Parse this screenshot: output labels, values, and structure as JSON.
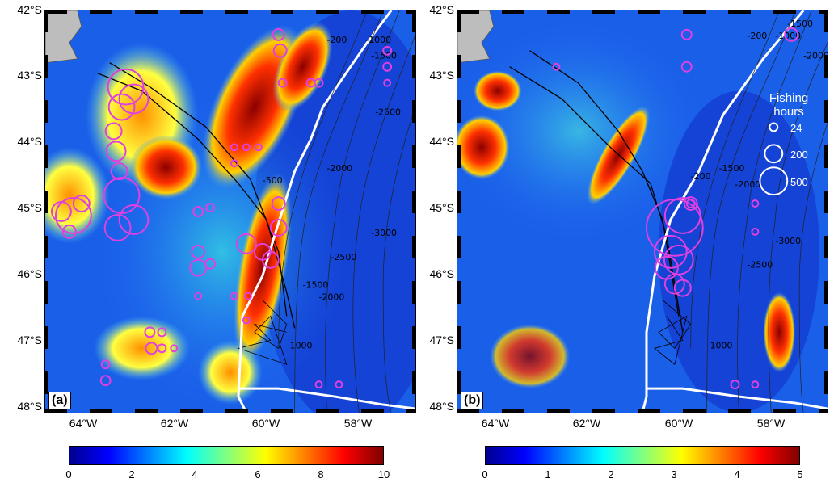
{
  "panels": [
    {
      "label": "(a)"
    },
    {
      "label": "(b)"
    }
  ],
  "lat_labels": [
    "42°S",
    "43°S",
    "44°S",
    "45°S",
    "46°S",
    "47°S",
    "48°S"
  ],
  "lon_labels": [
    "64°W",
    "62°W",
    "60°W",
    "58°W"
  ],
  "colorbar_a": {
    "ticks": [
      "0",
      "2",
      "4",
      "6",
      "8",
      "10"
    ]
  },
  "colorbar_b": {
    "ticks": [
      "0",
      "1",
      "2",
      "3",
      "4",
      "5"
    ]
  },
  "legend": {
    "title_line1": "Fishing",
    "title_line2": "hours",
    "entries": [
      "24",
      "200",
      "500"
    ]
  },
  "contours": {
    "a": [
      "-200",
      "-1000",
      "-1500",
      "-2000",
      "-2500",
      "-3000",
      "-500",
      "-1000",
      "-1500",
      "-2000",
      "-2500"
    ],
    "b": [
      "-200",
      "-1000",
      "-1500",
      "-2000",
      "-200",
      "-1000",
      "-1500",
      "-2000",
      "-2500",
      "-3000"
    ]
  },
  "colors": {
    "fishing_circle": "#e040e0",
    "eez_line": "#ffffff",
    "land": "#bdbdbd"
  }
}
